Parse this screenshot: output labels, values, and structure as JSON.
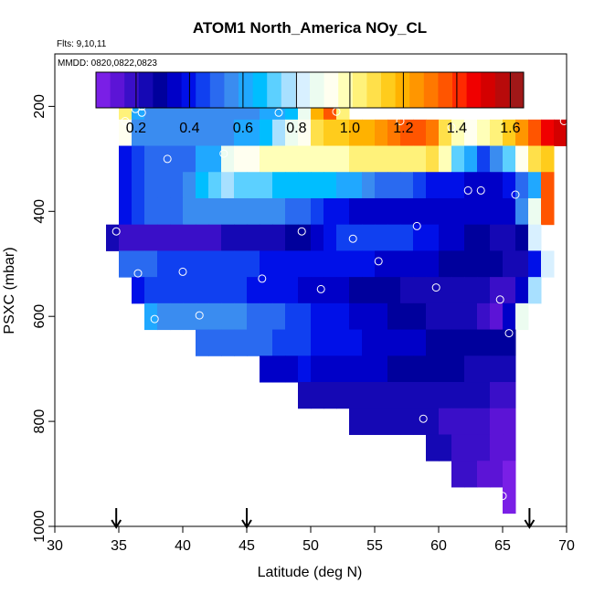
{
  "chart_data": {
    "type": "heatmap",
    "title": "ATOM1 North_America NOy_CL",
    "flights_label": "Flts: 9,10,11",
    "mmdd_label": "MMDD: 0820,0822,0823",
    "xlabel": "Latitude (deg N)",
    "ylabel": "PSXC (mbar)",
    "xlim": [
      30,
      70
    ],
    "ylim": [
      1000,
      100
    ],
    "x_ticks": [
      30,
      35,
      40,
      45,
      50,
      55,
      60,
      65,
      70
    ],
    "y_ticks": [
      200,
      400,
      600,
      800,
      1000
    ],
    "colorbar": {
      "range": [
        0.05,
        1.65
      ],
      "ticks": [
        0.2,
        0.4,
        0.6,
        0.8,
        1.0,
        1.2,
        1.4,
        1.6
      ],
      "tick_labels": [
        "0.2",
        "0.4",
        "0.6",
        "0.8",
        "1.0",
        "1.2",
        "1.4",
        "1.6"
      ],
      "colors": [
        "#7a1fe6",
        "#5c14d6",
        "#3a0fc8",
        "#1508b4",
        "#00009c",
        "#0000c8",
        "#0010e8",
        "#1040f0",
        "#2a6af0",
        "#3a8cf0",
        "#20a8ff",
        "#00beff",
        "#5cd0ff",
        "#a8e0ff",
        "#d8f0ff",
        "#ecfcf0",
        "#fffff0",
        "#ffffb8",
        "#fff27a",
        "#ffe04a",
        "#ffcc1c",
        "#ffb200",
        "#ff9600",
        "#ff7800",
        "#ff5500",
        "#ff2a00",
        "#f00000",
        "#d40000",
        "#b80a0a",
        "#a01818"
      ]
    },
    "lat_bins": [
      35,
      36,
      37,
      38,
      39,
      40,
      41,
      42,
      43,
      44,
      45,
      46,
      47,
      48,
      49,
      50,
      51,
      52,
      53,
      54,
      55,
      56,
      57,
      58,
      59,
      60,
      61,
      62,
      63,
      64,
      65,
      66,
      67,
      68,
      69,
      70
    ],
    "pressure_rows": [
      {
        "p": [
          175,
          225
        ],
        "start": 35,
        "values": [
          1.05,
          0.62,
          0.58,
          0.57,
          0.56,
          0.55,
          0.55,
          0.55,
          0.56,
          0.57,
          0.58,
          0.6,
          0.63,
          0.68,
          0.85,
          1.2,
          1.35,
          1.05
        ]
      },
      {
        "p": [
          225,
          275
        ],
        "start": 35,
        "values": [
          0.95,
          0.58,
          0.56,
          0.55,
          0.55,
          0.55,
          0.56,
          0.57,
          0.58,
          0.6,
          0.62,
          0.68,
          0.75,
          0.85,
          0.95,
          1.08,
          1.12,
          1.14,
          1.2,
          1.22,
          1.25,
          1.3,
          1.38,
          1.35,
          1.3,
          1.1,
          1.0,
          0.95,
          1.0,
          1.05,
          1.15,
          1.25,
          1.35,
          1.45,
          1.5
        ]
      },
      {
        "p": [
          275,
          325
        ],
        "start": 35,
        "values": [
          0.42,
          0.45,
          0.48,
          0.5,
          0.5,
          0.52,
          0.6,
          0.62,
          0.88,
          0.92,
          0.95,
          0.96,
          0.97,
          0.98,
          0.98,
          0.99,
          1.0,
          1.0,
          1.02,
          1.03,
          1.04,
          1.05,
          1.05,
          1.06,
          1.08,
          1.0,
          0.72,
          0.62,
          0.45,
          0.55,
          0.72,
          0.95,
          1.1,
          1.15
        ]
      },
      {
        "p": [
          325,
          375
        ],
        "start": 35,
        "values": [
          0.42,
          0.44,
          0.48,
          0.5,
          0.52,
          0.55,
          0.65,
          0.7,
          0.75,
          0.74,
          0.72,
          0.7,
          0.68,
          0.66,
          0.65,
          0.65,
          0.64,
          0.62,
          0.6,
          0.55,
          0.5,
          0.48,
          0.48,
          0.45,
          0.42,
          0.42,
          0.38,
          0.36,
          0.36,
          0.35,
          0.4,
          0.5,
          0.6,
          1.35
        ]
      },
      {
        "p": [
          375,
          425
        ],
        "start": 35,
        "values": [
          0.42,
          0.45,
          0.48,
          0.5,
          0.52,
          0.55,
          0.56,
          0.56,
          0.56,
          0.55,
          0.55,
          0.55,
          0.54,
          0.52,
          0.5,
          0.45,
          0.42,
          0.38,
          0.35,
          0.34,
          0.33,
          0.32,
          0.32,
          0.32,
          0.32,
          0.33,
          0.34,
          0.36,
          0.35,
          0.34,
          0.34,
          0.55,
          0.9,
          1.35
        ]
      },
      {
        "p": [
          425,
          475
        ],
        "start": 34,
        "values": [
          0.25,
          0.2,
          0.2,
          0.2,
          0.2,
          0.2,
          0.2,
          0.21,
          0.21,
          0.22,
          0.23,
          0.24,
          0.26,
          0.26,
          0.28,
          0.3,
          0.36,
          0.38,
          0.43,
          0.44,
          0.45,
          0.45,
          0.45,
          0.45,
          0.42,
          0.4,
          0.36,
          0.33,
          0.3,
          0.28,
          0.26,
          0.25,
          0.3,
          0.82
        ]
      },
      {
        "p": [
          475,
          525
        ],
        "start": 35,
        "values": [
          0.52,
          0.5,
          0.48,
          0.47,
          0.47,
          0.46,
          0.46,
          0.46,
          0.45,
          0.44,
          0.43,
          0.42,
          0.42,
          0.41,
          0.4,
          0.4,
          0.38,
          0.37,
          0.37,
          0.37,
          0.36,
          0.33,
          0.33,
          0.32,
          0.32,
          0.31,
          0.3,
          0.3,
          0.3,
          0.3,
          0.25,
          0.22,
          0.42,
          0.8
        ]
      },
      {
        "p": [
          525,
          575
        ],
        "start": 36,
        "values": [
          0.42,
          0.43,
          0.44,
          0.45,
          0.45,
          0.45,
          0.45,
          0.44,
          0.43,
          0.42,
          0.4,
          0.38,
          0.37,
          0.36,
          0.35,
          0.34,
          0.32,
          0.3,
          0.28,
          0.28,
          0.27,
          0.26,
          0.26,
          0.25,
          0.25,
          0.24,
          0.23,
          0.22,
          0.2,
          0.19,
          0.35,
          0.75
        ]
      },
      {
        "p": [
          575,
          625
        ],
        "start": 37,
        "values": [
          0.6,
          0.58,
          0.57,
          0.56,
          0.55,
          0.55,
          0.54,
          0.53,
          0.52,
          0.5,
          0.48,
          0.46,
          0.44,
          0.42,
          0.4,
          0.38,
          0.36,
          0.34,
          0.32,
          0.3,
          0.28,
          0.27,
          0.26,
          0.26,
          0.25,
          0.23,
          0.21,
          0.12,
          0.35,
          0.85
        ]
      },
      {
        "p": [
          625,
          675
        ],
        "start": 41,
        "values": [
          0.52,
          0.52,
          0.52,
          0.51,
          0.5,
          0.48,
          0.45,
          0.44,
          0.43,
          0.42,
          0.4,
          0.38,
          0.37,
          0.36,
          0.35,
          0.34,
          0.33,
          0.32,
          0.3,
          0.3,
          0.29,
          0.29,
          0.28,
          0.28,
          0.27
        ]
      },
      {
        "p": [
          675,
          725
        ],
        "start": 46,
        "values": [
          0.36,
          0.35,
          0.34,
          0.38,
          0.36,
          0.35,
          0.34,
          0.33,
          0.32,
          0.32,
          0.31,
          0.3,
          0.3,
          0.28,
          0.28,
          0.27,
          0.26,
          0.26,
          0.26,
          0.25
        ]
      },
      {
        "p": [
          725,
          775
        ],
        "start": 49,
        "values": [
          0.25,
          0.25,
          0.24,
          0.24,
          0.24,
          0.24,
          0.24,
          0.23,
          0.23,
          0.23,
          0.23,
          0.22,
          0.22,
          0.22,
          0.22,
          0.18,
          0.18
        ]
      },
      {
        "p": [
          775,
          825
        ],
        "start": 53,
        "values": [
          0.25,
          0.25,
          0.24,
          0.24,
          0.24,
          0.24,
          0.23,
          0.2,
          0.2,
          0.19,
          0.16,
          0.15,
          0.14
        ]
      },
      {
        "p": [
          825,
          875
        ],
        "start": 59,
        "values": [
          0.22,
          0.22,
          0.2,
          0.18,
          0.16,
          0.14,
          0.12
        ]
      },
      {
        "p": [
          875,
          925
        ],
        "start": 61,
        "values": [
          0.2,
          0.18,
          0.15,
          0.12,
          0.1
        ]
      },
      {
        "p": [
          925,
          975
        ],
        "start": 65,
        "values": [
          0.08
        ]
      }
    ],
    "observations": [
      {
        "lat": 35.5,
        "p": 228
      },
      {
        "lat": 36.3,
        "p": 205
      },
      {
        "lat": 36.5,
        "p": 190
      },
      {
        "lat": 36.8,
        "p": 212
      },
      {
        "lat": 36.8,
        "p": 200
      },
      {
        "lat": 38.8,
        "p": 300
      },
      {
        "lat": 43.2,
        "p": 290
      },
      {
        "lat": 47.5,
        "p": 212
      },
      {
        "lat": 52.0,
        "p": 210
      },
      {
        "lat": 57.0,
        "p": 228
      },
      {
        "lat": 61.0,
        "p": 240
      },
      {
        "lat": 69.8,
        "p": 228
      },
      {
        "lat": 62.3,
        "p": 360
      },
      {
        "lat": 63.3,
        "p": 360
      },
      {
        "lat": 66.0,
        "p": 368
      },
      {
        "lat": 58.3,
        "p": 428
      },
      {
        "lat": 34.8,
        "p": 438
      },
      {
        "lat": 49.3,
        "p": 438
      },
      {
        "lat": 53.3,
        "p": 452
      },
      {
        "lat": 55.3,
        "p": 495
      },
      {
        "lat": 36.5,
        "p": 518
      },
      {
        "lat": 40.0,
        "p": 515
      },
      {
        "lat": 46.2,
        "p": 528
      },
      {
        "lat": 50.8,
        "p": 548
      },
      {
        "lat": 59.8,
        "p": 545
      },
      {
        "lat": 64.8,
        "p": 568
      },
      {
        "lat": 37.8,
        "p": 605
      },
      {
        "lat": 41.3,
        "p": 598
      },
      {
        "lat": 65.5,
        "p": 632
      },
      {
        "lat": 58.8,
        "p": 795
      },
      {
        "lat": 65.0,
        "p": 942
      }
    ],
    "arrows_lat": [
      34.8,
      45.0,
      67.1
    ]
  }
}
